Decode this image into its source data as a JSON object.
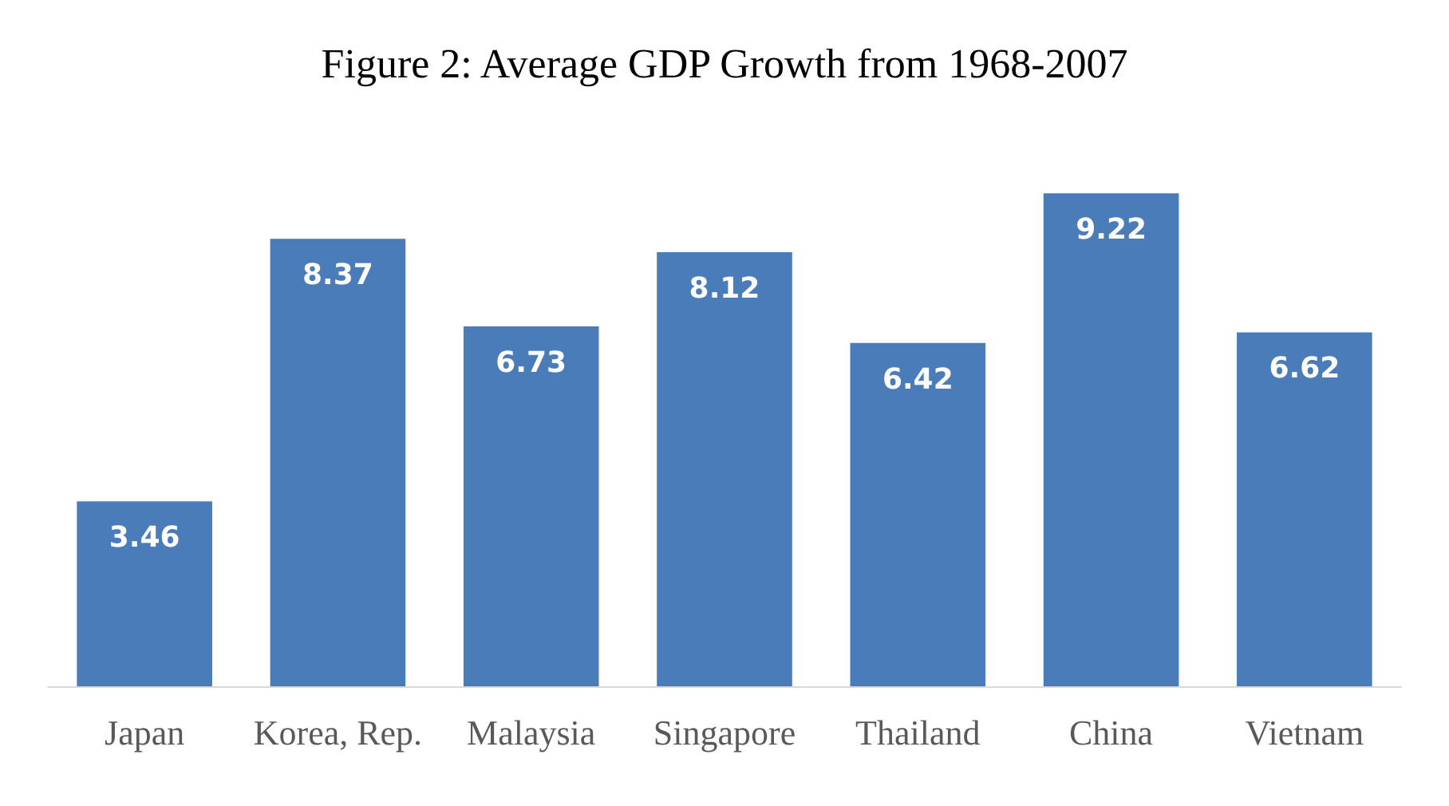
{
  "chart_data": {
    "type": "bar",
    "title": "Figure 2: Average GDP Growth from 1968-2007",
    "categories": [
      "Japan",
      "Korea, Rep.",
      "Malaysia",
      "Singapore",
      "Thailand",
      "China",
      "Vietnam"
    ],
    "values": [
      3.46,
      8.37,
      6.73,
      8.12,
      6.42,
      9.22,
      6.62
    ],
    "color": "#4a7cba",
    "data_labels": true
  }
}
